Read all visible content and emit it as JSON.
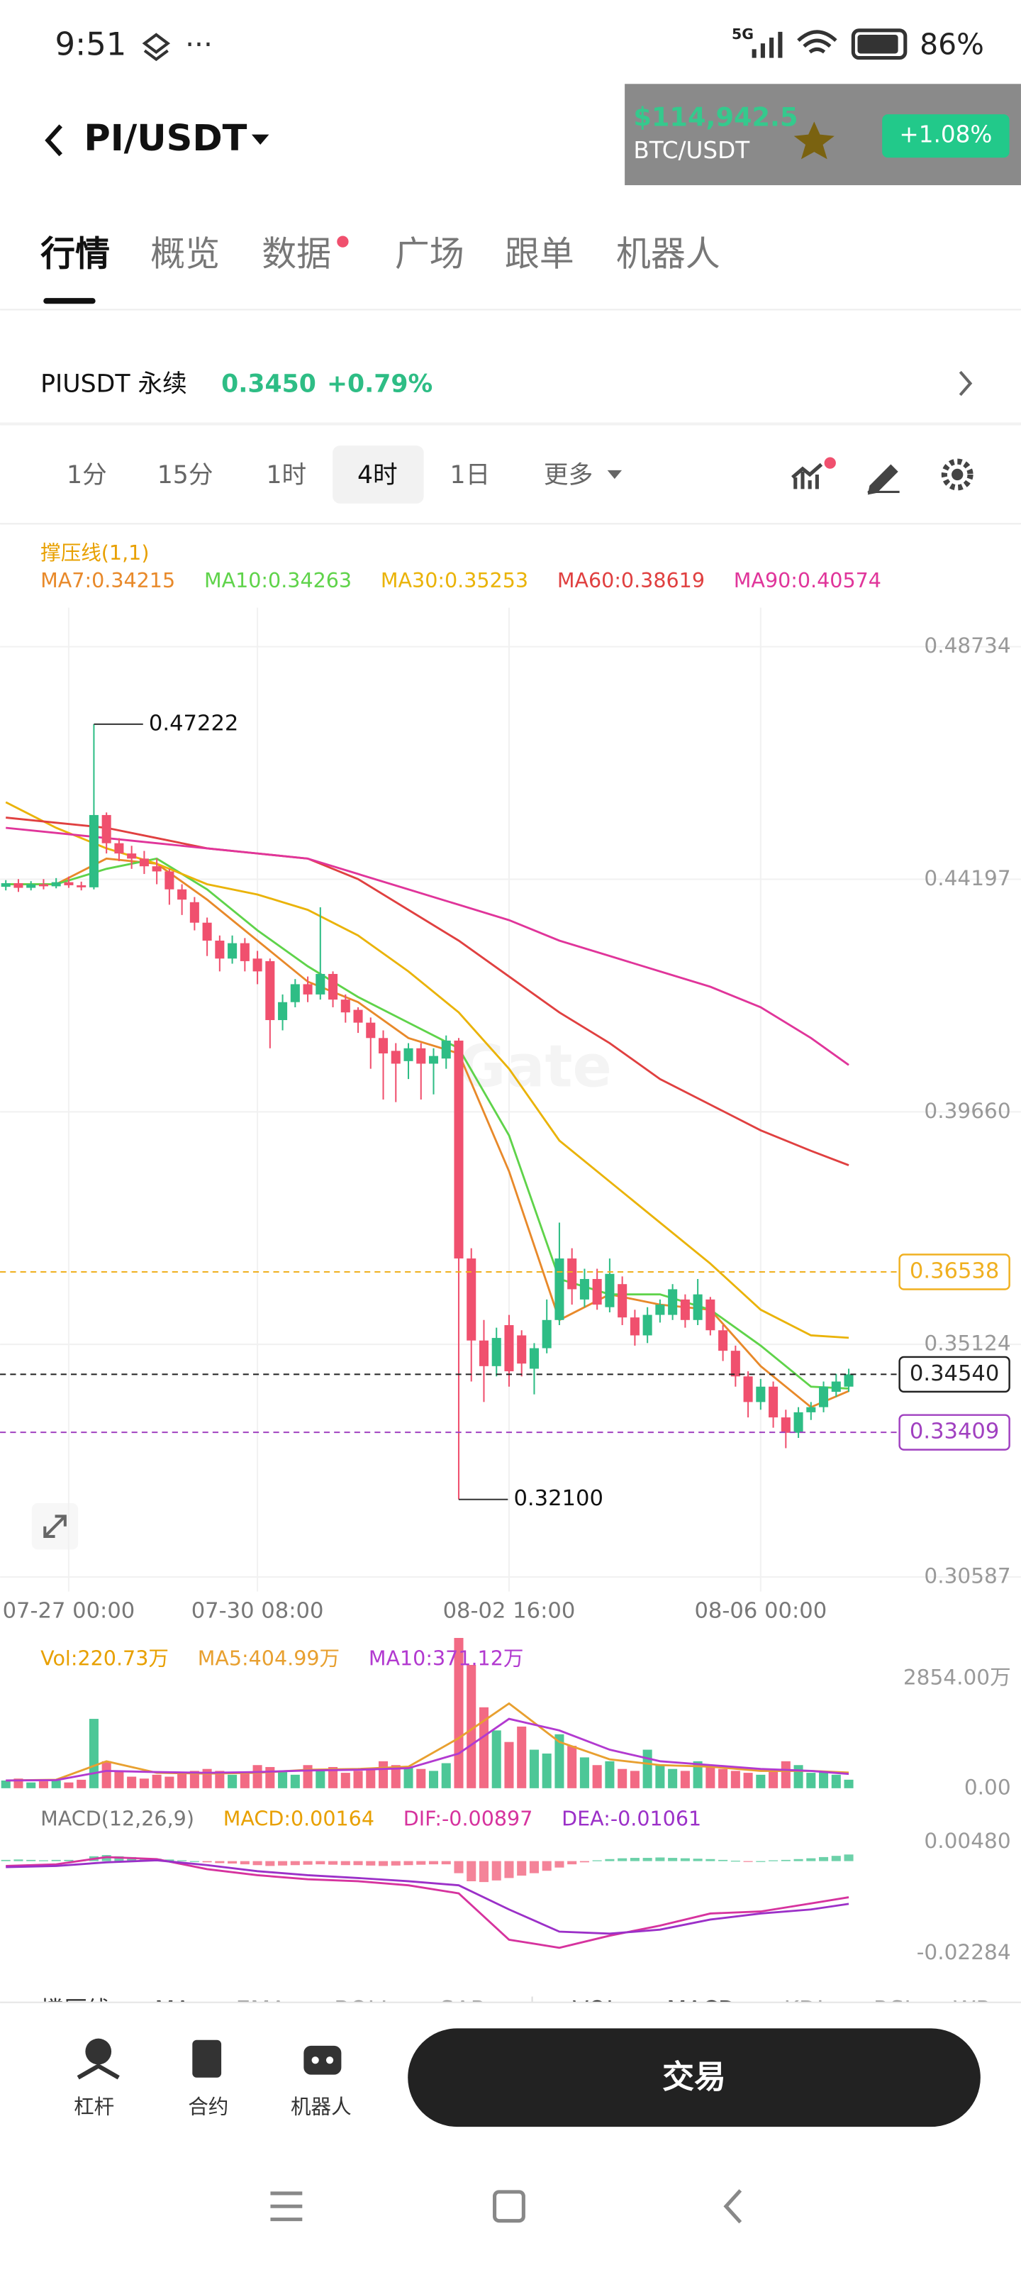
{
  "status_bar": {
    "time": "9:51",
    "network": "5G",
    "battery": "86%"
  },
  "header": {
    "pair": "PI/USDT"
  },
  "ticker_overlay": {
    "price": "$114,942.5",
    "pair": "BTC/USDT",
    "change": "+1.08%"
  },
  "tabs": [
    "行情",
    "概览",
    "数据",
    "广场",
    "跟单",
    "机器人"
  ],
  "contract": {
    "name": "PIUSDT 永续",
    "price": "0.3450",
    "change": "+0.79%"
  },
  "intervals": [
    "1分",
    "15分",
    "1时",
    "4时",
    "1日",
    "更多"
  ],
  "watermark": "Gate",
  "chart_data": [
    {
      "type": "candlestick",
      "title": "撑压线(1,1)",
      "up_color": "#2ebd85",
      "down_color": "#f0506e",
      "grid": true,
      "xlim": [
        -0.46,
        80.69
      ],
      "xticks": [
        {
          "value": 5,
          "label": "07-27 00:00"
        },
        {
          "value": 20,
          "label": "07-30 08:00"
        },
        {
          "value": 40,
          "label": "08-02 16:00"
        },
        {
          "value": 60,
          "label": "08-06 00:00"
        }
      ],
      "ylim": [
        0.30305,
        0.49495
      ],
      "yticks": [
        0.48734,
        0.44197,
        {
          "value": 0.3966,
          "label": "0.39660"
        },
        0.35124,
        0.30587
      ],
      "open": [
        0.4405,
        0.4412,
        0.4403,
        0.441,
        0.4406,
        0.4414,
        0.4408,
        0.4404,
        0.4545,
        0.449,
        0.447,
        0.446,
        0.4445,
        0.4435,
        0.44,
        0.4375,
        0.4335,
        0.43,
        0.4265,
        0.4295,
        0.4265,
        0.426,
        0.4145,
        0.418,
        0.4215,
        0.4195,
        0.4235,
        0.4185,
        0.4165,
        0.414,
        0.411,
        0.4085,
        0.4065,
        0.409,
        0.406,
        0.407,
        0.4105,
        0.368,
        0.352,
        0.347,
        0.355,
        0.353,
        0.3465,
        0.3505,
        0.356,
        0.368,
        0.36,
        0.364,
        0.3585,
        0.363,
        0.3565,
        0.353,
        0.357,
        0.357,
        0.36,
        0.356,
        0.36,
        0.354,
        0.35,
        0.345,
        0.34,
        0.343,
        0.337,
        0.334,
        0.338,
        0.339,
        0.342,
        0.343
      ],
      "high": [
        0.4418,
        0.442,
        0.4416,
        0.442,
        0.4422,
        0.4425,
        0.4415,
        0.47222,
        0.455,
        0.45,
        0.4485,
        0.4475,
        0.446,
        0.444,
        0.441,
        0.4385,
        0.4345,
        0.431,
        0.431,
        0.4305,
        0.428,
        0.4265,
        0.4195,
        0.4225,
        0.423,
        0.4365,
        0.424,
        0.4195,
        0.417,
        0.415,
        0.4125,
        0.41,
        0.41,
        0.41,
        0.409,
        0.4115,
        0.411,
        0.37,
        0.356,
        0.3545,
        0.357,
        0.354,
        0.3515,
        0.36,
        0.375,
        0.37,
        0.366,
        0.366,
        0.368,
        0.3645,
        0.358,
        0.3585,
        0.36,
        0.363,
        0.361,
        0.364,
        0.3605,
        0.355,
        0.351,
        0.346,
        0.3445,
        0.344,
        0.3385,
        0.339,
        0.34,
        0.344,
        0.3455,
        0.3465
      ],
      "low": [
        0.4398,
        0.4395,
        0.4398,
        0.44,
        0.4402,
        0.4403,
        0.4398,
        0.44,
        0.447,
        0.4455,
        0.444,
        0.443,
        0.441,
        0.437,
        0.435,
        0.432,
        0.427,
        0.424,
        0.4255,
        0.424,
        0.4215,
        0.409,
        0.4125,
        0.417,
        0.418,
        0.4185,
        0.417,
        0.414,
        0.412,
        0.405,
        0.399,
        0.3985,
        0.403,
        0.399,
        0.4,
        0.405,
        0.321,
        0.344,
        0.34,
        0.345,
        0.343,
        0.345,
        0.3415,
        0.3495,
        0.355,
        0.359,
        0.3585,
        0.358,
        0.3575,
        0.355,
        0.351,
        0.3515,
        0.3555,
        0.356,
        0.3545,
        0.355,
        0.353,
        0.348,
        0.343,
        0.337,
        0.3385,
        0.335,
        0.331,
        0.333,
        0.3365,
        0.338,
        0.341,
        0.342
      ],
      "close": [
        0.4412,
        0.4403,
        0.441,
        0.4406,
        0.4414,
        0.4408,
        0.4404,
        0.4545,
        0.449,
        0.447,
        0.446,
        0.4445,
        0.4435,
        0.44,
        0.438,
        0.4335,
        0.43,
        0.4265,
        0.4295,
        0.426,
        0.424,
        0.4145,
        0.418,
        0.4215,
        0.4195,
        0.4235,
        0.4185,
        0.416,
        0.414,
        0.411,
        0.408,
        0.406,
        0.409,
        0.406,
        0.4075,
        0.4105,
        0.368,
        0.352,
        0.347,
        0.3525,
        0.346,
        0.3475,
        0.3505,
        0.356,
        0.368,
        0.362,
        0.364,
        0.359,
        0.365,
        0.3565,
        0.353,
        0.357,
        0.359,
        0.362,
        0.356,
        0.361,
        0.354,
        0.35,
        0.345,
        0.34,
        0.343,
        0.337,
        0.334,
        0.338,
        0.339,
        0.343,
        0.344,
        0.3454
      ],
      "series": [
        {
          "name": "MA7:0.34215",
          "color": "#e8892a",
          "x": [
            0,
            4,
            8,
            12,
            16,
            20,
            24,
            28,
            32,
            36,
            40,
            44,
            48,
            52,
            56,
            60,
            64,
            67
          ],
          "values": [
            0.441,
            0.441,
            0.446,
            0.445,
            0.438,
            0.43,
            0.422,
            0.418,
            0.411,
            0.408,
            0.385,
            0.356,
            0.361,
            0.359,
            0.358,
            0.347,
            0.339,
            0.34215
          ]
        },
        {
          "name": "MA10:0.34263",
          "color": "#5fd34a",
          "x": [
            0,
            4,
            8,
            12,
            16,
            20,
            24,
            28,
            32,
            36,
            40,
            44,
            48,
            52,
            56,
            60,
            64,
            67
          ],
          "values": [
            0.441,
            0.441,
            0.444,
            0.446,
            0.44,
            0.432,
            0.425,
            0.419,
            0.414,
            0.409,
            0.392,
            0.364,
            0.361,
            0.361,
            0.358,
            0.351,
            0.343,
            0.34263
          ]
        },
        {
          "name": "MA30:0.35253",
          "color": "#eab308",
          "x": [
            0,
            4,
            8,
            12,
            16,
            20,
            24,
            28,
            32,
            36,
            40,
            44,
            48,
            52,
            56,
            60,
            64,
            67
          ],
          "values": [
            0.457,
            0.452,
            0.448,
            0.445,
            0.441,
            0.439,
            0.436,
            0.431,
            0.424,
            0.416,
            0.405,
            0.391,
            0.383,
            0.375,
            0.367,
            0.358,
            0.353,
            0.35253
          ]
        },
        {
          "name": "MA60:0.38619",
          "color": "#e04040",
          "x": [
            0,
            4,
            8,
            12,
            16,
            20,
            24,
            28,
            32,
            36,
            40,
            44,
            48,
            52,
            56,
            60,
            64,
            67
          ],
          "values": [
            0.454,
            0.453,
            0.452,
            0.45,
            0.448,
            0.447,
            0.446,
            0.442,
            0.436,
            0.43,
            0.423,
            0.416,
            0.41,
            0.403,
            0.398,
            0.393,
            0.389,
            0.38619
          ]
        },
        {
          "name": "MA90:0.40574",
          "color": "#e0359a",
          "x": [
            0,
            4,
            8,
            12,
            16,
            20,
            24,
            28,
            32,
            36,
            40,
            44,
            48,
            52,
            56,
            60,
            64,
            67
          ],
          "values": [
            0.452,
            0.451,
            0.45,
            0.449,
            0.448,
            0.447,
            0.446,
            0.443,
            0.44,
            0.437,
            0.434,
            0.43,
            0.427,
            0.424,
            0.421,
            0.417,
            0.411,
            0.40574
          ]
        }
      ],
      "levels": [
        {
          "value": 0.36538,
          "label": "0.36538",
          "color": "#f0b020"
        },
        {
          "value": 0.3454,
          "label": "0.34540",
          "color": "#222222"
        },
        {
          "value": 0.33409,
          "label": "0.33409",
          "color": "#a040c0"
        }
      ],
      "annotations": [
        {
          "value": 0.47222,
          "label": "0.47222"
        },
        {
          "value": 0.321,
          "label": "0.32100"
        }
      ]
    },
    {
      "type": "bar",
      "title": "Vol:220.73万",
      "ylim": [
        0,
        3980
      ],
      "yticks": [
        {
          "value": 2854,
          "label": "2854.00万"
        },
        {
          "value": 0,
          "label": "0.00"
        }
      ],
      "values": [
        200,
        250,
        150,
        180,
        200,
        150,
        220,
        1800,
        700,
        450,
        300,
        250,
        350,
        300,
        400,
        450,
        500,
        450,
        350,
        400,
        600,
        550,
        450,
        350,
        600,
        500,
        550,
        400,
        450,
        500,
        700,
        600,
        550,
        500,
        450,
        650,
        3900,
        3200,
        2100,
        1500,
        1200,
        1600,
        1000,
        900,
        1400,
        1100,
        800,
        600,
        700,
        500,
        450,
        1000,
        600,
        500,
        450,
        700,
        600,
        500,
        450,
        400,
        350,
        500,
        700,
        600,
        400,
        450,
        350,
        220.73
      ],
      "series": [
        {
          "name": "MA5:404.99万",
          "color": "#e8a030",
          "x": [
            0,
            4,
            8,
            12,
            16,
            20,
            24,
            28,
            32,
            36,
            40,
            44,
            48,
            52,
            56,
            60,
            64,
            67
          ],
          "values": [
            200,
            220,
            700,
            400,
            380,
            400,
            480,
            500,
            560,
            1300,
            2200,
            1200,
            750,
            600,
            560,
            450,
            450,
            404.99
          ]
        },
        {
          "name": "MA10:371.12万",
          "color": "#b23ad0",
          "x": [
            0,
            4,
            8,
            12,
            16,
            20,
            24,
            28,
            32,
            36,
            40,
            44,
            48,
            52,
            56,
            60,
            64,
            67
          ],
          "values": [
            200,
            210,
            450,
            420,
            400,
            420,
            460,
            480,
            520,
            900,
            1800,
            1500,
            1000,
            700,
            600,
            500,
            450,
            371.12
          ]
        }
      ]
    },
    {
      "type": "bar",
      "title": "MACD(12,26,9)",
      "histogram_name": "MACD:0.00164",
      "ylim": [
        -0.02643,
        0.00875
      ],
      "yticks": [
        {
          "value": 0.0048,
          "label": "0.00480"
        },
        -0.02284
      ],
      "values": [
        0.0003,
        0.0004,
        0.0003,
        0.0002,
        0.0003,
        0.0003,
        0.0002,
        0.0012,
        0.0015,
        0.0012,
        0.001,
        0.0008,
        0.0006,
        0.0004,
        0.0002,
        0.0,
        -0.0003,
        -0.0005,
        -0.0006,
        -0.0008,
        -0.001,
        -0.0012,
        -0.0011,
        -0.001,
        -0.0009,
        -0.0008,
        -0.0009,
        -0.001,
        -0.001,
        -0.0011,
        -0.0012,
        -0.0011,
        -0.001,
        -0.0009,
        -0.0008,
        -0.0008,
        -0.003,
        -0.005,
        -0.0052,
        -0.0048,
        -0.0042,
        -0.0036,
        -0.003,
        -0.0024,
        -0.0016,
        -0.0008,
        -0.0003,
        0.0002,
        0.0005,
        0.0007,
        0.0008,
        0.0008,
        0.0009,
        0.0008,
        0.0007,
        0.0006,
        0.0005,
        0.0003,
        0.0001,
        -0.0001,
        0.0,
        0.0002,
        0.0003,
        0.0005,
        0.0007,
        0.001,
        0.0013,
        0.00164
      ],
      "series": [
        {
          "name": "DIF:-0.00897",
          "color": "#d6339e",
          "x": [
            0,
            4,
            8,
            12,
            16,
            20,
            24,
            28,
            32,
            36,
            40,
            44,
            48,
            52,
            56,
            60,
            64,
            67
          ],
          "values": [
            -0.0012,
            -0.0008,
            0.001,
            0.0005,
            -0.002,
            -0.0035,
            -0.0045,
            -0.005,
            -0.006,
            -0.008,
            -0.0195,
            -0.0215,
            -0.0185,
            -0.016,
            -0.013,
            -0.0125,
            -0.0105,
            -0.00897
          ]
        },
        {
          "name": "DEA:-0.01061",
          "color": "#9b30c8",
          "x": [
            0,
            4,
            8,
            12,
            16,
            20,
            24,
            28,
            32,
            36,
            40,
            44,
            48,
            52,
            56,
            60,
            64,
            67
          ],
          "values": [
            -0.0015,
            -0.0012,
            -0.0003,
            0.0002,
            -0.001,
            -0.0025,
            -0.0035,
            -0.0042,
            -0.005,
            -0.006,
            -0.012,
            -0.0175,
            -0.018,
            -0.017,
            -0.0145,
            -0.013,
            -0.012,
            -0.01061
          ]
        }
      ]
    }
  ],
  "indicator_tabs": [
    "撑压线",
    "MA",
    "EMA",
    "BOLL",
    "SAR",
    "VOL",
    "MACD",
    "KDJ",
    "RSI",
    "WR"
  ],
  "bottom_nav": {
    "items": [
      "杠杆",
      "合约",
      "机器人"
    ],
    "trade_button": "交易"
  }
}
